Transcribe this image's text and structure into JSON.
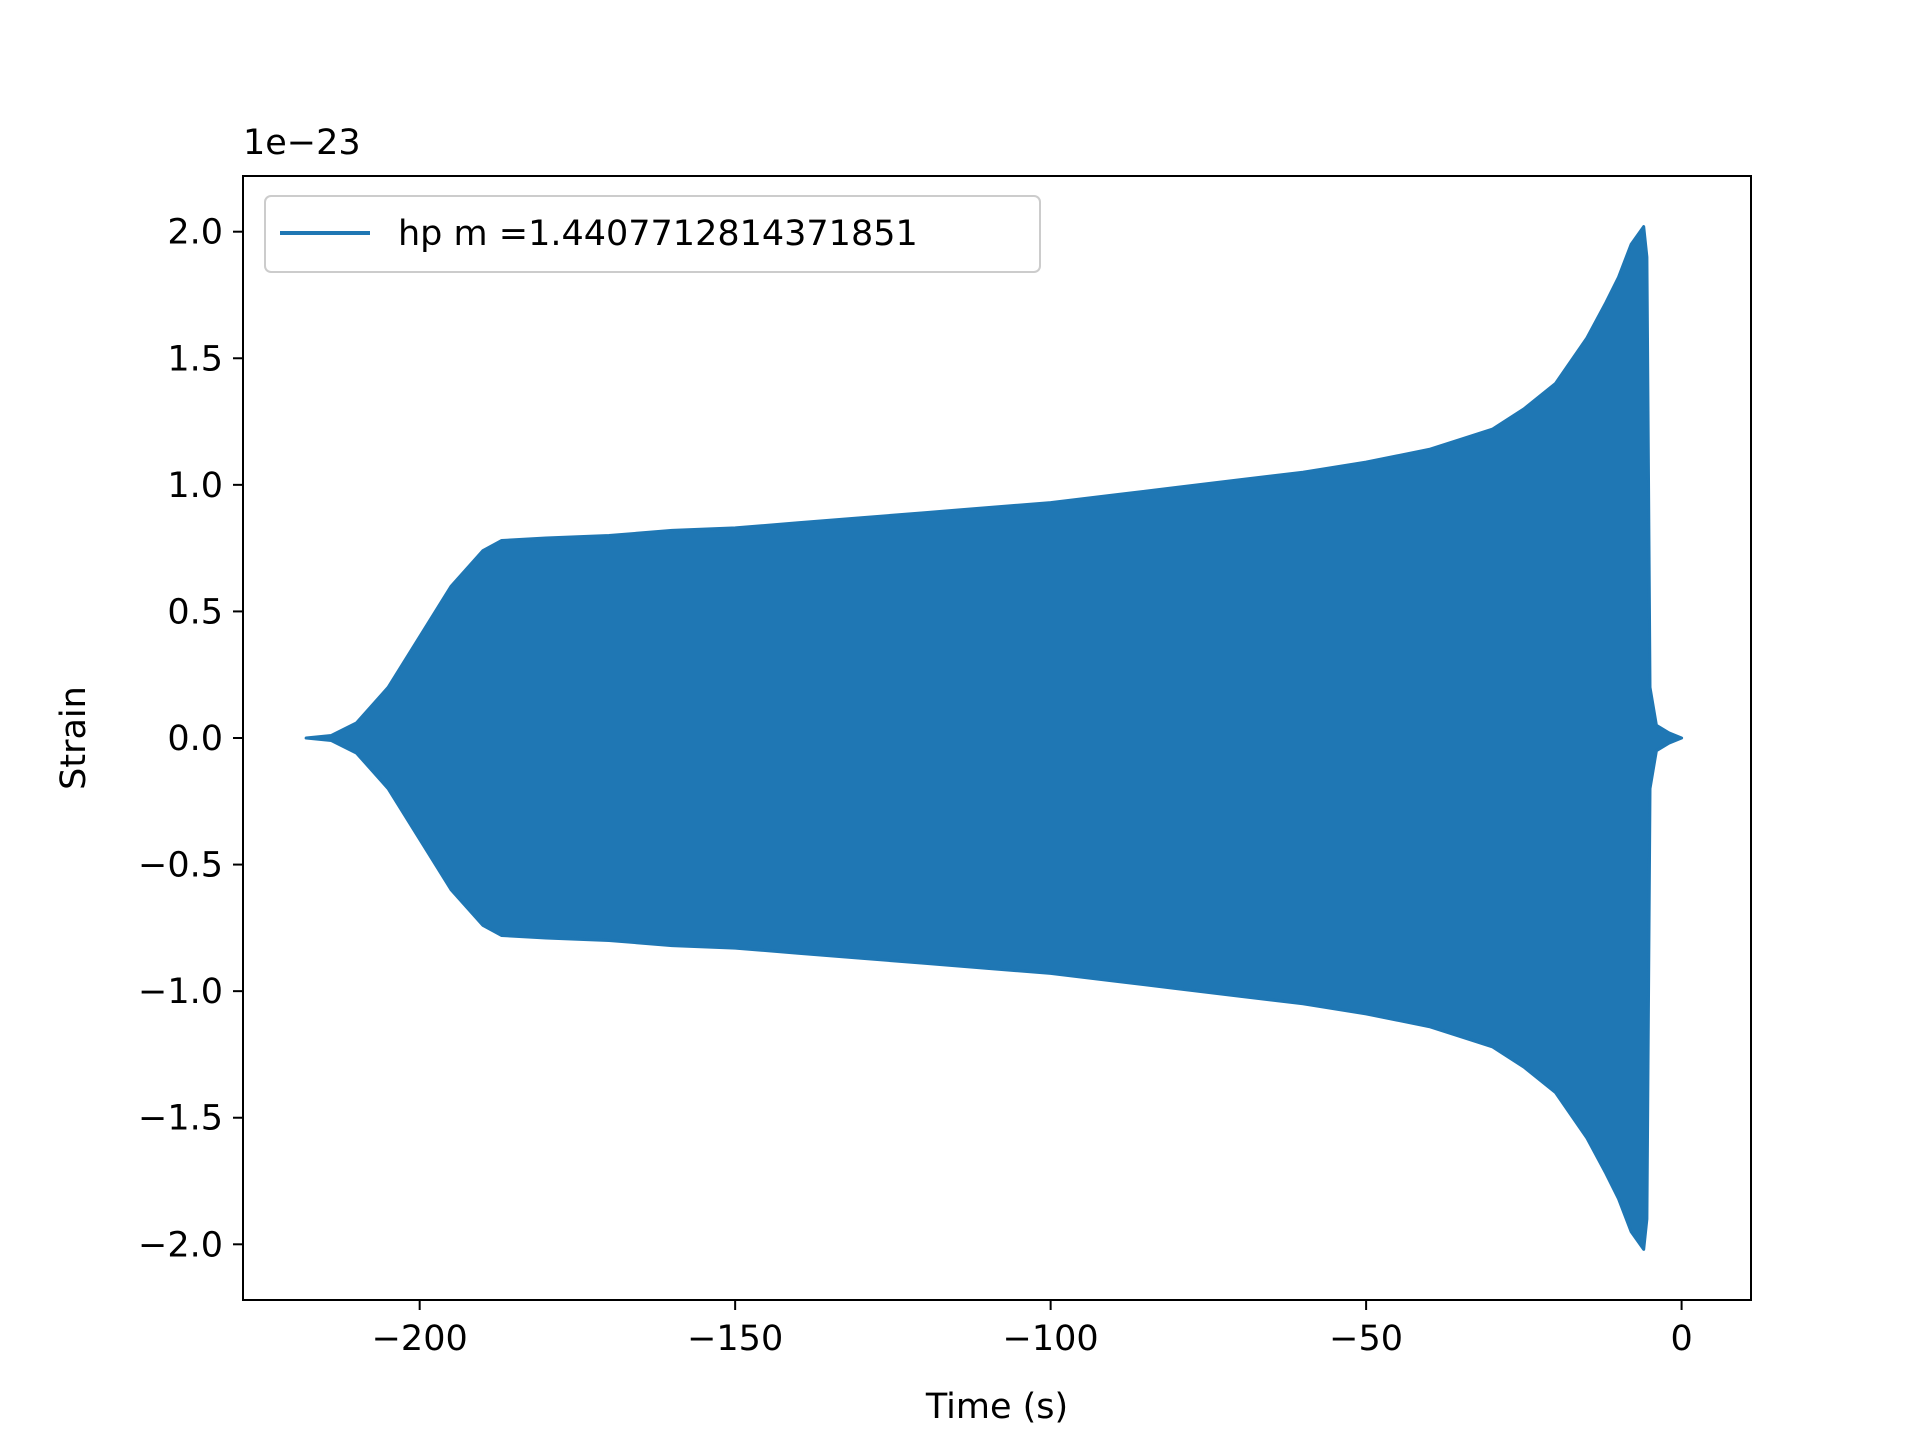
{
  "chart_data": {
    "type": "line",
    "title": "",
    "xlabel": "Time (s)",
    "ylabel": "Strain",
    "offset_label": "1e−23",
    "y_scale_factor": 1e-23,
    "xlim": [
      -228,
      11
    ],
    "ylim": [
      -2.22,
      2.22
    ],
    "xticks": [
      -200,
      -150,
      -100,
      -50,
      0
    ],
    "xtick_labels": [
      "−200",
      "−150",
      "−100",
      "−50",
      "0"
    ],
    "yticks": [
      2.0,
      1.5,
      1.0,
      0.5,
      0.0,
      -0.5,
      -1.0,
      -1.5,
      -2.0
    ],
    "ytick_labels": [
      "2.0",
      "1.5",
      "1.0",
      "0.5",
      "0.0",
      "−0.5",
      "−1.0",
      "−1.5",
      "−2.0"
    ],
    "grid": false,
    "legend": {
      "position": "upper-left"
    },
    "series": [
      {
        "name": "hp m =1.4407712814371851",
        "color": "#1f77b4",
        "style": "oscillating waveform (filled envelope)",
        "envelope_time": [
          -218,
          -214,
          -210,
          -205,
          -200,
          -195,
          -190,
          -187,
          -180,
          -170,
          -160,
          -150,
          -140,
          -130,
          -120,
          -110,
          -100,
          -90,
          -80,
          -70,
          -60,
          -50,
          -40,
          -35,
          -30,
          -25,
          -20,
          -15,
          -12,
          -10,
          -8,
          -6,
          -5.5,
          -5,
          -4,
          -2,
          0
        ],
        "envelope_amplitude": [
          0.0,
          0.01,
          0.06,
          0.2,
          0.4,
          0.6,
          0.74,
          0.78,
          0.79,
          0.8,
          0.82,
          0.83,
          0.85,
          0.87,
          0.89,
          0.91,
          0.93,
          0.96,
          0.99,
          1.02,
          1.05,
          1.09,
          1.14,
          1.18,
          1.22,
          1.3,
          1.4,
          1.58,
          1.72,
          1.82,
          1.95,
          2.02,
          1.9,
          0.2,
          0.05,
          0.02,
          0.0
        ]
      }
    ]
  }
}
